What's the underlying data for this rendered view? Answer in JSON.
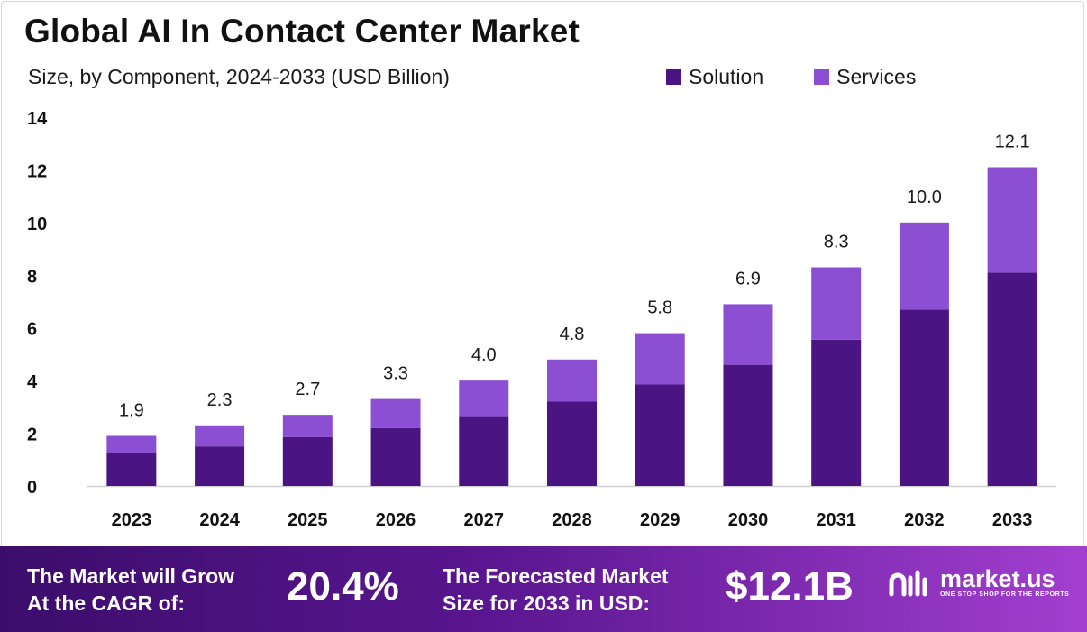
{
  "title": "Global AI In Contact Center Market",
  "subtitle": "Size, by Component, 2024-2033 (USD Billion)",
  "legend": [
    {
      "label": "Solution",
      "color": "#4b1483"
    },
    {
      "label": "Services",
      "color": "#8c4fd3"
    }
  ],
  "chart_data": {
    "type": "bar",
    "stacked": true,
    "categories": [
      "2023",
      "2024",
      "2025",
      "2026",
      "2027",
      "2028",
      "2029",
      "2030",
      "2031",
      "2032",
      "2033"
    ],
    "series": [
      {
        "name": "Solution",
        "color": "#4b1483",
        "values": [
          1.25,
          1.5,
          1.85,
          2.2,
          2.65,
          3.2,
          3.85,
          4.6,
          5.55,
          6.7,
          8.1
        ]
      },
      {
        "name": "Services",
        "color": "#8c4fd3",
        "values": [
          0.65,
          0.8,
          0.85,
          1.1,
          1.35,
          1.6,
          1.95,
          2.3,
          2.75,
          3.3,
          4.0
        ]
      }
    ],
    "totals_labels": [
      "1.9",
      "2.3",
      "2.7",
      "3.3",
      "4.0",
      "4.8",
      "5.8",
      "6.9",
      "8.3",
      "10.0",
      "12.1"
    ],
    "totals": [
      1.9,
      2.3,
      2.7,
      3.3,
      4.0,
      4.8,
      5.8,
      6.9,
      8.3,
      10.0,
      12.1
    ],
    "yticks": [
      0,
      2,
      4,
      6,
      8,
      10,
      12,
      14
    ],
    "ylim": [
      0,
      14
    ],
    "grid": false,
    "legend_position": "top-right"
  },
  "banner": {
    "cagr_text_line1": "The Market will Grow",
    "cagr_text_line2": "At the CAGR of:",
    "cagr_value": "20.4%",
    "forecast_text_line1": "The Forecasted Market",
    "forecast_text_line2": "Size for 2033 in USD:",
    "forecast_value": "$12.1B",
    "logo_name": "market.us",
    "logo_tagline": "ONE STOP SHOP FOR THE REPORTS"
  }
}
